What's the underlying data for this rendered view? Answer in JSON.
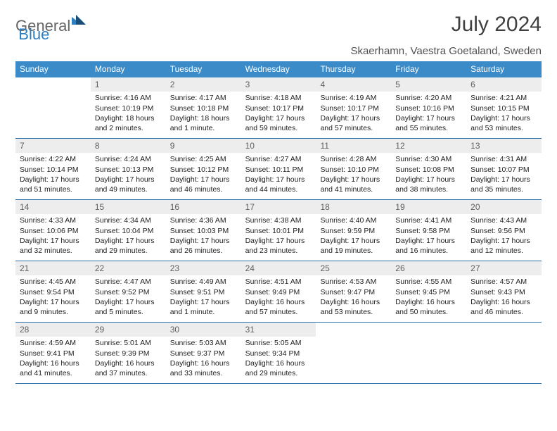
{
  "logo": {
    "part1": "General",
    "part2": "Blue"
  },
  "title": "July 2024",
  "subtitle": "Skaerhamn, Vaestra Goetaland, Sweden",
  "colors": {
    "header_bg": "#3b8bc9",
    "header_text": "#ffffff",
    "daynum_bg": "#ededed",
    "border": "#2b6fa8",
    "logo_accent": "#2b7ec2"
  },
  "dayNames": [
    "Sunday",
    "Monday",
    "Tuesday",
    "Wednesday",
    "Thursday",
    "Friday",
    "Saturday"
  ],
  "weeks": [
    [
      {
        "n": "",
        "sr": "",
        "ss": "",
        "dl": ""
      },
      {
        "n": "1",
        "sr": "Sunrise: 4:16 AM",
        "ss": "Sunset: 10:19 PM",
        "dl": "Daylight: 18 hours and 2 minutes."
      },
      {
        "n": "2",
        "sr": "Sunrise: 4:17 AM",
        "ss": "Sunset: 10:18 PM",
        "dl": "Daylight: 18 hours and 1 minute."
      },
      {
        "n": "3",
        "sr": "Sunrise: 4:18 AM",
        "ss": "Sunset: 10:17 PM",
        "dl": "Daylight: 17 hours and 59 minutes."
      },
      {
        "n": "4",
        "sr": "Sunrise: 4:19 AM",
        "ss": "Sunset: 10:17 PM",
        "dl": "Daylight: 17 hours and 57 minutes."
      },
      {
        "n": "5",
        "sr": "Sunrise: 4:20 AM",
        "ss": "Sunset: 10:16 PM",
        "dl": "Daylight: 17 hours and 55 minutes."
      },
      {
        "n": "6",
        "sr": "Sunrise: 4:21 AM",
        "ss": "Sunset: 10:15 PM",
        "dl": "Daylight: 17 hours and 53 minutes."
      }
    ],
    [
      {
        "n": "7",
        "sr": "Sunrise: 4:22 AM",
        "ss": "Sunset: 10:14 PM",
        "dl": "Daylight: 17 hours and 51 minutes."
      },
      {
        "n": "8",
        "sr": "Sunrise: 4:24 AM",
        "ss": "Sunset: 10:13 PM",
        "dl": "Daylight: 17 hours and 49 minutes."
      },
      {
        "n": "9",
        "sr": "Sunrise: 4:25 AM",
        "ss": "Sunset: 10:12 PM",
        "dl": "Daylight: 17 hours and 46 minutes."
      },
      {
        "n": "10",
        "sr": "Sunrise: 4:27 AM",
        "ss": "Sunset: 10:11 PM",
        "dl": "Daylight: 17 hours and 44 minutes."
      },
      {
        "n": "11",
        "sr": "Sunrise: 4:28 AM",
        "ss": "Sunset: 10:10 PM",
        "dl": "Daylight: 17 hours and 41 minutes."
      },
      {
        "n": "12",
        "sr": "Sunrise: 4:30 AM",
        "ss": "Sunset: 10:08 PM",
        "dl": "Daylight: 17 hours and 38 minutes."
      },
      {
        "n": "13",
        "sr": "Sunrise: 4:31 AM",
        "ss": "Sunset: 10:07 PM",
        "dl": "Daylight: 17 hours and 35 minutes."
      }
    ],
    [
      {
        "n": "14",
        "sr": "Sunrise: 4:33 AM",
        "ss": "Sunset: 10:06 PM",
        "dl": "Daylight: 17 hours and 32 minutes."
      },
      {
        "n": "15",
        "sr": "Sunrise: 4:34 AM",
        "ss": "Sunset: 10:04 PM",
        "dl": "Daylight: 17 hours and 29 minutes."
      },
      {
        "n": "16",
        "sr": "Sunrise: 4:36 AM",
        "ss": "Sunset: 10:03 PM",
        "dl": "Daylight: 17 hours and 26 minutes."
      },
      {
        "n": "17",
        "sr": "Sunrise: 4:38 AM",
        "ss": "Sunset: 10:01 PM",
        "dl": "Daylight: 17 hours and 23 minutes."
      },
      {
        "n": "18",
        "sr": "Sunrise: 4:40 AM",
        "ss": "Sunset: 9:59 PM",
        "dl": "Daylight: 17 hours and 19 minutes."
      },
      {
        "n": "19",
        "sr": "Sunrise: 4:41 AM",
        "ss": "Sunset: 9:58 PM",
        "dl": "Daylight: 17 hours and 16 minutes."
      },
      {
        "n": "20",
        "sr": "Sunrise: 4:43 AM",
        "ss": "Sunset: 9:56 PM",
        "dl": "Daylight: 17 hours and 12 minutes."
      }
    ],
    [
      {
        "n": "21",
        "sr": "Sunrise: 4:45 AM",
        "ss": "Sunset: 9:54 PM",
        "dl": "Daylight: 17 hours and 9 minutes."
      },
      {
        "n": "22",
        "sr": "Sunrise: 4:47 AM",
        "ss": "Sunset: 9:52 PM",
        "dl": "Daylight: 17 hours and 5 minutes."
      },
      {
        "n": "23",
        "sr": "Sunrise: 4:49 AM",
        "ss": "Sunset: 9:51 PM",
        "dl": "Daylight: 17 hours and 1 minute."
      },
      {
        "n": "24",
        "sr": "Sunrise: 4:51 AM",
        "ss": "Sunset: 9:49 PM",
        "dl": "Daylight: 16 hours and 57 minutes."
      },
      {
        "n": "25",
        "sr": "Sunrise: 4:53 AM",
        "ss": "Sunset: 9:47 PM",
        "dl": "Daylight: 16 hours and 53 minutes."
      },
      {
        "n": "26",
        "sr": "Sunrise: 4:55 AM",
        "ss": "Sunset: 9:45 PM",
        "dl": "Daylight: 16 hours and 50 minutes."
      },
      {
        "n": "27",
        "sr": "Sunrise: 4:57 AM",
        "ss": "Sunset: 9:43 PM",
        "dl": "Daylight: 16 hours and 46 minutes."
      }
    ],
    [
      {
        "n": "28",
        "sr": "Sunrise: 4:59 AM",
        "ss": "Sunset: 9:41 PM",
        "dl": "Daylight: 16 hours and 41 minutes."
      },
      {
        "n": "29",
        "sr": "Sunrise: 5:01 AM",
        "ss": "Sunset: 9:39 PM",
        "dl": "Daylight: 16 hours and 37 minutes."
      },
      {
        "n": "30",
        "sr": "Sunrise: 5:03 AM",
        "ss": "Sunset: 9:37 PM",
        "dl": "Daylight: 16 hours and 33 minutes."
      },
      {
        "n": "31",
        "sr": "Sunrise: 5:05 AM",
        "ss": "Sunset: 9:34 PM",
        "dl": "Daylight: 16 hours and 29 minutes."
      },
      {
        "n": "",
        "sr": "",
        "ss": "",
        "dl": ""
      },
      {
        "n": "",
        "sr": "",
        "ss": "",
        "dl": ""
      },
      {
        "n": "",
        "sr": "",
        "ss": "",
        "dl": ""
      }
    ]
  ]
}
